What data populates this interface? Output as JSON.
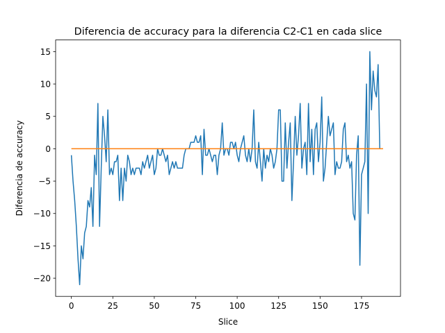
{
  "chart_data": {
    "type": "line",
    "title": "Diferencia de accuracy para la diferencia C2-C1 en cada slice",
    "xlabel": "Slice",
    "ylabel": "Diferencia de accuracy",
    "xlim": [
      -9.5,
      198.5
    ],
    "ylim": [
      -22.8,
      16.8
    ],
    "xticks": [
      0,
      25,
      50,
      75,
      100,
      125,
      150,
      175
    ],
    "yticks": [
      -20,
      -15,
      -10,
      -5,
      0,
      5,
      10,
      15
    ],
    "ytick_labels": [
      "−20",
      "−15",
      "−10",
      "−5",
      "0",
      "5",
      "10",
      "15"
    ],
    "grid": false,
    "series": [
      {
        "color": "#1f77b4",
        "x_start": 0,
        "values": [
          -1,
          -5,
          -8,
          -12,
          -17,
          -21,
          -15,
          -17,
          -13,
          -12,
          -8,
          -9,
          -6,
          -12,
          -1,
          -4,
          7,
          -12,
          -3,
          5,
          2,
          -2,
          6,
          -4,
          -3,
          -4,
          -2,
          -2,
          -1,
          -8,
          -3,
          -8,
          -3,
          -5,
          -1,
          -2,
          -4,
          -3,
          -4,
          -3,
          -3,
          -3,
          -4,
          -2,
          -3,
          -2,
          -1,
          -3,
          -2,
          -1,
          -4,
          -3,
          0,
          -1,
          -1,
          0,
          -1,
          -2,
          -1,
          -4,
          -3,
          -2,
          -3,
          -2,
          -3,
          -3,
          -3,
          -3,
          -1,
          0,
          0,
          0,
          1,
          1,
          1,
          2,
          1,
          1,
          2,
          -4,
          3,
          -1,
          -1,
          0,
          -1,
          -2,
          -1,
          -1,
          -4,
          -1,
          0,
          4,
          -1,
          0,
          0,
          -1,
          1,
          1,
          0,
          1,
          -1,
          -2,
          0,
          1,
          2,
          -1,
          -2,
          0,
          -2,
          0,
          6,
          -2,
          -3,
          1,
          -2,
          -5,
          0,
          -3,
          -1,
          -2,
          0,
          -1,
          -3,
          -2,
          0,
          6,
          6,
          -5,
          -5,
          4,
          -3,
          1,
          4,
          -8,
          -2,
          5,
          -1,
          2,
          7,
          -3,
          0,
          1,
          -4,
          7,
          -2,
          3,
          -4,
          3,
          4,
          -2,
          1,
          8,
          -5,
          -3,
          1,
          5,
          2,
          3,
          4,
          -4,
          -2,
          -3,
          -3,
          -2,
          3,
          4,
          -2,
          -1,
          -3,
          -2,
          -10,
          -11,
          -1,
          2,
          -18,
          -4,
          -3,
          -2,
          10,
          -10,
          15,
          6,
          12,
          9,
          8,
          13,
          0
        ],
        "note_values_from_x0": true
      },
      {
        "color": "#ff7f0e",
        "x": [
          0,
          188
        ],
        "values": [
          0,
          0
        ]
      }
    ]
  }
}
